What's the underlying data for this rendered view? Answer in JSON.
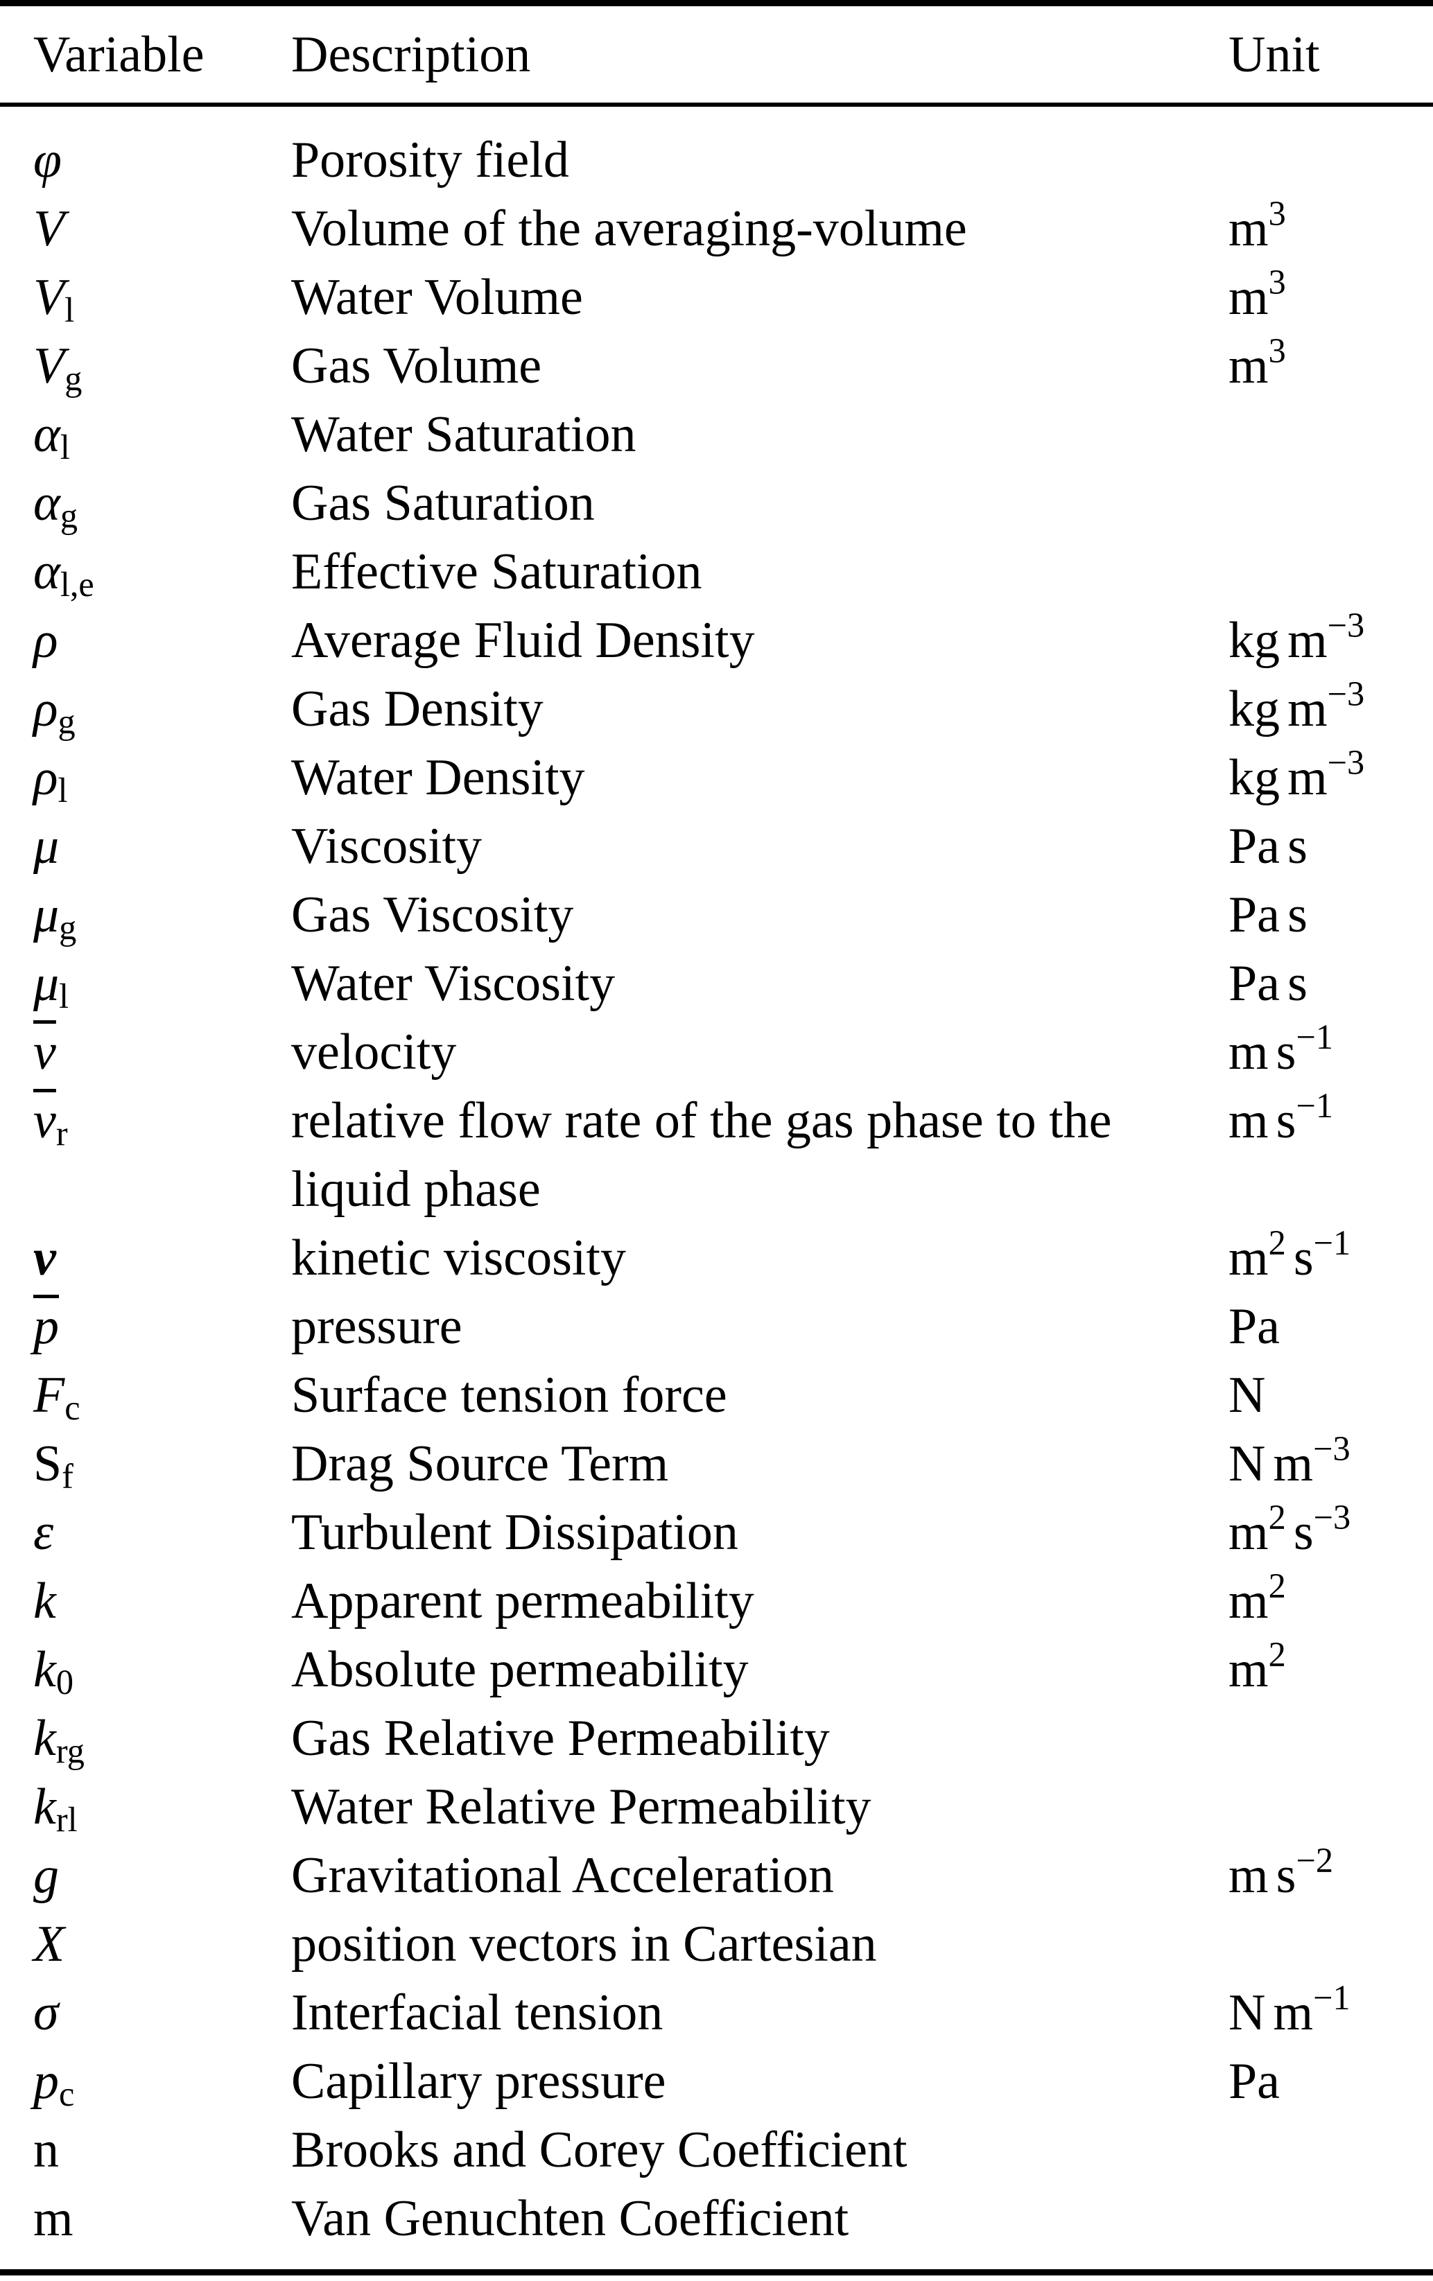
{
  "header": {
    "variable": "Variable",
    "description": "Description",
    "unit": "Unit"
  },
  "table": {
    "rows": [
      {
        "var": {
          "base": "φ",
          "italic": true,
          "bold": false,
          "overline": false,
          "sub": ""
        },
        "desc": "Porosity field",
        "unit": []
      },
      {
        "var": {
          "base": "V",
          "italic": true,
          "bold": false,
          "overline": false,
          "sub": ""
        },
        "desc": "Volume of the averaging-volume",
        "unit": [
          {
            "t": "m"
          },
          {
            "sup": "3"
          }
        ]
      },
      {
        "var": {
          "base": "V",
          "italic": true,
          "bold": false,
          "overline": false,
          "sub": "l"
        },
        "desc": "Water Volume",
        "unit": [
          {
            "t": "m"
          },
          {
            "sup": "3"
          }
        ]
      },
      {
        "var": {
          "base": "V",
          "italic": true,
          "bold": false,
          "overline": false,
          "sub": "g"
        },
        "desc": "Gas Volume",
        "unit": [
          {
            "t": "m"
          },
          {
            "sup": "3"
          }
        ]
      },
      {
        "var": {
          "base": "α",
          "italic": true,
          "bold": false,
          "overline": false,
          "sub": "l"
        },
        "desc": "Water Saturation",
        "unit": []
      },
      {
        "var": {
          "base": "α",
          "italic": true,
          "bold": false,
          "overline": false,
          "sub": "g"
        },
        "desc": "Gas Saturation",
        "unit": []
      },
      {
        "var": {
          "base": "α",
          "italic": true,
          "bold": false,
          "overline": false,
          "sub": "l,e"
        },
        "desc": "Effective Saturation",
        "unit": []
      },
      {
        "var": {
          "base": "ρ",
          "italic": true,
          "bold": false,
          "overline": false,
          "sub": ""
        },
        "desc": "Average Fluid Density",
        "unit": [
          {
            "t": "kg m"
          },
          {
            "sup": "−3"
          }
        ]
      },
      {
        "var": {
          "base": "ρ",
          "italic": true,
          "bold": false,
          "overline": false,
          "sub": "g"
        },
        "desc": "Gas Density",
        "unit": [
          {
            "t": "kg m"
          },
          {
            "sup": "−3"
          }
        ]
      },
      {
        "var": {
          "base": "ρ",
          "italic": true,
          "bold": false,
          "overline": false,
          "sub": "l"
        },
        "desc": "Water Density",
        "unit": [
          {
            "t": "kg m"
          },
          {
            "sup": "−3"
          }
        ]
      },
      {
        "var": {
          "base": "μ",
          "italic": true,
          "bold": false,
          "overline": false,
          "sub": ""
        },
        "desc": "Viscosity",
        "unit": [
          {
            "t": "Pa s"
          }
        ]
      },
      {
        "var": {
          "base": "μ",
          "italic": true,
          "bold": false,
          "overline": false,
          "sub": "g"
        },
        "desc": "Gas Viscosity",
        "unit": [
          {
            "t": "Pa s"
          }
        ]
      },
      {
        "var": {
          "base": "μ",
          "italic": true,
          "bold": false,
          "overline": false,
          "sub": "l"
        },
        "desc": "Water Viscosity",
        "unit": [
          {
            "t": "Pa s"
          }
        ]
      },
      {
        "var": {
          "base": "v",
          "italic": true,
          "bold": false,
          "overline": true,
          "sub": ""
        },
        "desc": "velocity",
        "unit": [
          {
            "t": "m s"
          },
          {
            "sup": "−1"
          }
        ]
      },
      {
        "var": {
          "base": "v",
          "italic": true,
          "bold": false,
          "overline": true,
          "sub": "r"
        },
        "desc": "relative flow rate of the gas phase to the liquid phase",
        "unit": [
          {
            "t": "m s"
          },
          {
            "sup": "−1"
          }
        ]
      },
      {
        "var": {
          "base": "v",
          "italic": true,
          "bold": true,
          "overline": false,
          "sub": ""
        },
        "desc": "kinetic viscosity",
        "unit": [
          {
            "t": "m"
          },
          {
            "sup": "2"
          },
          {
            "t": " s"
          },
          {
            "sup": "−1"
          }
        ]
      },
      {
        "var": {
          "base": "p",
          "italic": true,
          "bold": false,
          "overline": true,
          "sub": ""
        },
        "desc": "pressure",
        "unit": [
          {
            "t": "Pa"
          }
        ]
      },
      {
        "var": {
          "base": "F",
          "italic": true,
          "bold": false,
          "overline": false,
          "sub": "c"
        },
        "desc": "Surface tension force",
        "unit": [
          {
            "t": "N"
          }
        ]
      },
      {
        "var": {
          "base": "S",
          "italic": false,
          "bold": false,
          "overline": false,
          "sub": "f"
        },
        "desc": "Drag Source Term",
        "unit": [
          {
            "t": "N m"
          },
          {
            "sup": "−3"
          }
        ]
      },
      {
        "var": {
          "base": "ε",
          "italic": true,
          "bold": false,
          "overline": false,
          "sub": ""
        },
        "desc": "Turbulent Dissipation",
        "unit": [
          {
            "t": "m"
          },
          {
            "sup": "2"
          },
          {
            "t": " s"
          },
          {
            "sup": "−3"
          }
        ]
      },
      {
        "var": {
          "base": "k",
          "italic": true,
          "bold": false,
          "overline": false,
          "sub": ""
        },
        "desc": "Apparent permeability",
        "unit": [
          {
            "t": "m"
          },
          {
            "sup": "2"
          }
        ]
      },
      {
        "var": {
          "base": "k",
          "italic": true,
          "bold": false,
          "overline": false,
          "sub": "0"
        },
        "desc": "Absolute permeability",
        "unit": [
          {
            "t": "m"
          },
          {
            "sup": "2"
          }
        ]
      },
      {
        "var": {
          "base": "k",
          "italic": true,
          "bold": false,
          "overline": false,
          "sub": "rg"
        },
        "desc": "Gas Relative Permeability",
        "unit": []
      },
      {
        "var": {
          "base": "k",
          "italic": true,
          "bold": false,
          "overline": false,
          "sub": "rl"
        },
        "desc": "Water Relative Permeability",
        "unit": []
      },
      {
        "var": {
          "base": "g",
          "italic": true,
          "bold": false,
          "overline": false,
          "sub": ""
        },
        "desc": "Gravitational Acceleration",
        "unit": [
          {
            "t": "m s"
          },
          {
            "sup": "−2"
          }
        ]
      },
      {
        "var": {
          "base": "X",
          "italic": true,
          "bold": false,
          "overline": false,
          "sub": ""
        },
        "desc": "position vectors in Cartesian",
        "unit": []
      },
      {
        "var": {
          "base": "σ",
          "italic": true,
          "bold": false,
          "overline": false,
          "sub": ""
        },
        "desc": "Interfacial tension",
        "unit": [
          {
            "t": "N m"
          },
          {
            "sup": "−1"
          }
        ]
      },
      {
        "var": {
          "base": "p",
          "italic": true,
          "bold": false,
          "overline": false,
          "sub": "c"
        },
        "desc": "Capillary pressure",
        "unit": [
          {
            "t": "Pa"
          }
        ]
      },
      {
        "var": {
          "base": "n",
          "italic": false,
          "bold": false,
          "overline": false,
          "sub": ""
        },
        "desc": "Brooks and Corey Coefficient",
        "unit": []
      },
      {
        "var": {
          "base": "m",
          "italic": false,
          "bold": false,
          "overline": false,
          "sub": ""
        },
        "desc": "Van Genuchten Coefficient",
        "unit": []
      }
    ]
  }
}
